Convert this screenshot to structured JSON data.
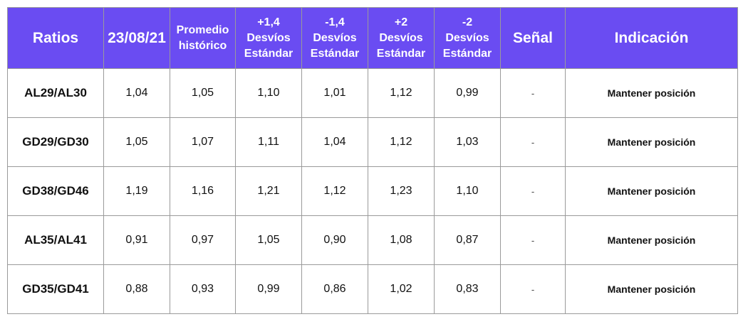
{
  "table": {
    "header": [
      [
        "Ratios"
      ],
      [
        "23/08/21"
      ],
      [
        "Promedio",
        "histórico"
      ],
      [
        "+1,4",
        "Desvíos",
        "Estándar"
      ],
      [
        "-1,4",
        "Desvíos",
        "Estándar"
      ],
      [
        "+2",
        "Desvíos",
        "Estándar"
      ],
      [
        "-2",
        "Desvíos",
        "Estándar"
      ],
      [
        "Señal"
      ],
      [
        "Indicación"
      ]
    ],
    "rows": [
      [
        "AL29/AL30",
        "1,04",
        "1,05",
        "1,10",
        "1,01",
        "1,12",
        "0,99",
        "-",
        "Mantener posición"
      ],
      [
        "GD29/GD30",
        "1,05",
        "1,07",
        "1,11",
        "1,04",
        "1,12",
        "1,03",
        "-",
        "Mantener posición"
      ],
      [
        "GD38/GD46",
        "1,19",
        "1,16",
        "1,21",
        "1,12",
        "1,23",
        "1,10",
        "-",
        "Mantener posición"
      ],
      [
        "AL35/AL41",
        "0,91",
        "0,97",
        "1,05",
        "0,90",
        "1,08",
        "0,87",
        "-",
        "Mantener posición"
      ],
      [
        "GD35/GD41",
        "0,88",
        "0,93",
        "0,99",
        "0,86",
        "1,02",
        "0,83",
        "-",
        "Mantener posición"
      ]
    ]
  }
}
